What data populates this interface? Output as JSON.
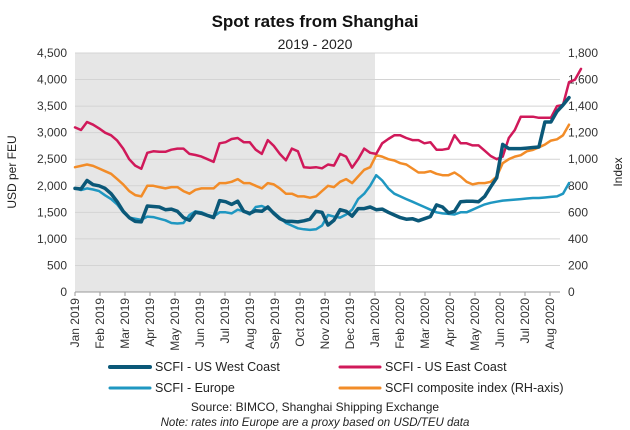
{
  "chart_data": {
    "type": "line",
    "title": "Spot rates from Shanghai",
    "subtitle": "2019 - 2020",
    "ylabel": "USD per FEU",
    "y2label": "Index",
    "ylim": [
      0,
      4500
    ],
    "y2lim": [
      0,
      1800
    ],
    "yticks": [
      "0",
      "500",
      "1,000",
      "1,500",
      "2,000",
      "2,500",
      "3,000",
      "3,500",
      "4,000",
      "4,500"
    ],
    "y2ticks": [
      "0",
      "200",
      "400",
      "600",
      "800",
      "1,000",
      "1,200",
      "1,400",
      "1,600",
      "1,800"
    ],
    "x_labels": [
      "Jan 2019",
      "Feb 2019",
      "Mar 2019",
      "Apr 2019",
      "May 2019",
      "Jun 2019",
      "Jul 2019",
      "Aug 2019",
      "Sep 2019",
      "Oct 2019",
      "Nov 2019",
      "Dec 2019",
      "Jan 2020",
      "Feb 2020",
      "Mar 2020",
      "Apr 2020",
      "May 2020",
      "Jun 2020",
      "Jul 2020",
      "Aug 2020"
    ],
    "shaded_region": "Jan 2019 - Jan 2020",
    "grid": true,
    "legend_position": "bottom",
    "series": [
      {
        "name": "SCFI - US West Coast",
        "axis": "left",
        "color": "#0b5878",
        "values": [
          1950,
          1940,
          2100,
          2020,
          2000,
          1950,
          1850,
          1700,
          1520,
          1400,
          1330,
          1320,
          1620,
          1610,
          1600,
          1550,
          1560,
          1520,
          1400,
          1350,
          1500,
          1480,
          1440,
          1400,
          1720,
          1700,
          1650,
          1710,
          1520,
          1480,
          1530,
          1520,
          1600,
          1480,
          1380,
          1330,
          1330,
          1320,
          1340,
          1370,
          1520,
          1500,
          1260,
          1350,
          1550,
          1520,
          1430,
          1570,
          1570,
          1600,
          1550,
          1560,
          1500,
          1450,
          1400,
          1370,
          1380,
          1340,
          1380,
          1420,
          1640,
          1600,
          1490,
          1520,
          1700,
          1710,
          1710,
          1700,
          1800,
          1980,
          2150,
          2780,
          2700,
          2700,
          2700,
          2710,
          2720,
          2730,
          3200,
          3200,
          3400,
          3520,
          3660
        ]
      },
      {
        "name": "SCFI - US East Coast",
        "axis": "left",
        "color": "#d0195a",
        "values": [
          3100,
          3050,
          3200,
          3150,
          3080,
          3000,
          2950,
          2850,
          2700,
          2500,
          2380,
          2320,
          2620,
          2650,
          2640,
          2640,
          2680,
          2700,
          2700,
          2600,
          2580,
          2550,
          2500,
          2450,
          2800,
          2820,
          2880,
          2900,
          2820,
          2820,
          2680,
          2600,
          2860,
          2750,
          2600,
          2480,
          2700,
          2650,
          2350,
          2340,
          2350,
          2330,
          2400,
          2380,
          2600,
          2550,
          2340,
          2500,
          2700,
          2620,
          2600,
          2800,
          2880,
          2950,
          2950,
          2900,
          2860,
          2860,
          2800,
          2820,
          2680,
          2680,
          2700,
          2950,
          2800,
          2800,
          2760,
          2760,
          2660,
          2560,
          2500,
          2550,
          2900,
          3050,
          3300,
          3300,
          3300,
          3280,
          3280,
          3280,
          3500,
          3520,
          3950,
          4000,
          4200
        ]
      },
      {
        "name": "SCFI - Europe",
        "axis": "left",
        "color": "#1f97c1",
        "values": [
          1950,
          1920,
          1950,
          1930,
          1900,
          1820,
          1750,
          1650,
          1500,
          1400,
          1380,
          1360,
          1420,
          1410,
          1380,
          1350,
          1300,
          1290,
          1300,
          1450,
          1520,
          1500,
          1450,
          1420,
          1500,
          1500,
          1480,
          1550,
          1520,
          1460,
          1600,
          1620,
          1570,
          1500,
          1400,
          1300,
          1250,
          1200,
          1180,
          1170,
          1180,
          1250,
          1450,
          1420,
          1400,
          1460,
          1550,
          1750,
          1850,
          2000,
          2200,
          2100,
          1950,
          1850,
          1800,
          1750,
          1700,
          1650,
          1600,
          1550,
          1500,
          1480,
          1470,
          1460,
          1500,
          1500,
          1550,
          1600,
          1650,
          1680,
          1700,
          1720,
          1730,
          1740,
          1750,
          1760,
          1770,
          1770,
          1780,
          1790,
          1800,
          1850,
          2050
        ]
      },
      {
        "name": "SCFI composite index (RH-axis)",
        "axis": "right",
        "color": "#f28c28",
        "values": [
          940,
          950,
          960,
          950,
          930,
          910,
          890,
          850,
          810,
          760,
          730,
          720,
          800,
          800,
          790,
          780,
          790,
          790,
          760,
          740,
          770,
          780,
          780,
          780,
          820,
          820,
          830,
          850,
          820,
          820,
          800,
          780,
          820,
          810,
          780,
          740,
          740,
          720,
          720,
          710,
          720,
          760,
          800,
          790,
          830,
          850,
          820,
          870,
          920,
          940,
          1030,
          1020,
          1000,
          990,
          970,
          960,
          930,
          900,
          900,
          910,
          890,
          880,
          880,
          900,
          870,
          830,
          810,
          820,
          820,
          830,
          870,
          970,
          1000,
          1020,
          1030,
          1060,
          1070,
          1090,
          1110,
          1140,
          1150,
          1180,
          1260
        ]
      }
    ]
  },
  "footer": {
    "source": "Source: BIMCO, Shanghai Shipping Exchange",
    "note": "Note: rates into Europe are a proxy based on USD/TEU data"
  }
}
